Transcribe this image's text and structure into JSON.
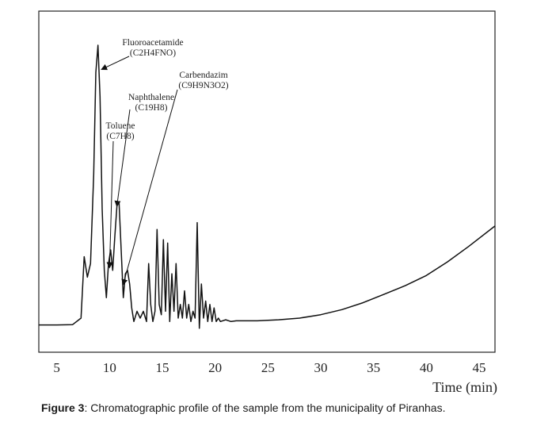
{
  "chart_data": {
    "type": "line",
    "xlabel": "Time (min)",
    "xlim": [
      3.3,
      46.5
    ],
    "ylim": [
      0,
      1.0
    ],
    "x_ticks": [
      5,
      10,
      15,
      20,
      25,
      30,
      35,
      40,
      45
    ],
    "grid": false,
    "series": [
      {
        "x": [
          3.3,
          5.0,
          6.5,
          7.3,
          7.6,
          7.9,
          8.2,
          8.5,
          8.7,
          8.9,
          9.1,
          9.3,
          9.5,
          9.7,
          9.9,
          10.1,
          10.3,
          10.5,
          10.7,
          10.9,
          11.1,
          11.3,
          11.5,
          11.7,
          11.9,
          12.1,
          12.3,
          12.6,
          12.9,
          13.2,
          13.5,
          13.7,
          13.9,
          14.1,
          14.3,
          14.5,
          14.7,
          14.9,
          15.1,
          15.3,
          15.5,
          15.7,
          15.9,
          16.1,
          16.3,
          16.5,
          16.7,
          16.9,
          17.1,
          17.3,
          17.5,
          17.7,
          17.9,
          18.1,
          18.3,
          18.5,
          18.7,
          18.9,
          19.1,
          19.3,
          19.5,
          19.7,
          19.9,
          20.1,
          20.3,
          20.5,
          21.0,
          21.5,
          22.0,
          24.0,
          26.0,
          28.0,
          30.0,
          32.0,
          34.0,
          36.0,
          38.0,
          40.0,
          42.0,
          44.0,
          46.5
        ],
        "y": [
          0.08,
          0.08,
          0.081,
          0.1,
          0.28,
          0.22,
          0.26,
          0.52,
          0.82,
          0.9,
          0.75,
          0.42,
          0.24,
          0.16,
          0.26,
          0.3,
          0.24,
          0.34,
          0.43,
          0.44,
          0.3,
          0.16,
          0.23,
          0.24,
          0.2,
          0.13,
          0.09,
          0.12,
          0.1,
          0.12,
          0.09,
          0.26,
          0.14,
          0.09,
          0.12,
          0.36,
          0.14,
          0.11,
          0.33,
          0.12,
          0.32,
          0.09,
          0.23,
          0.12,
          0.26,
          0.1,
          0.14,
          0.1,
          0.18,
          0.1,
          0.14,
          0.09,
          0.12,
          0.1,
          0.38,
          0.07,
          0.2,
          0.1,
          0.15,
          0.09,
          0.14,
          0.09,
          0.13,
          0.09,
          0.1,
          0.09,
          0.095,
          0.09,
          0.092,
          0.092,
          0.095,
          0.1,
          0.11,
          0.125,
          0.145,
          0.17,
          0.195,
          0.225,
          0.265,
          0.31,
          0.37
        ]
      }
    ],
    "annotations": [
      {
        "lines": [
          "Fluoroacetamide",
          "(C2H4FNO)"
        ],
        "target": {
          "x": 9.3,
          "y": 0.83
        }
      },
      {
        "lines": [
          "Carbendazim",
          "(C9H9N3O2)"
        ],
        "target": {
          "x": 11.3,
          "y": 0.2
        }
      },
      {
        "lines": [
          "Naphthalene",
          "(C19H8)"
        ],
        "target": {
          "x": 10.7,
          "y": 0.43
        }
      },
      {
        "lines": [
          "Toluene",
          "(C7H8)"
        ],
        "target": {
          "x": 10.0,
          "y": 0.25
        }
      }
    ]
  },
  "caption": {
    "label": "Figure 3",
    "text": ": Chromatographic profile of the sample from the municipality of Piranhas."
  }
}
